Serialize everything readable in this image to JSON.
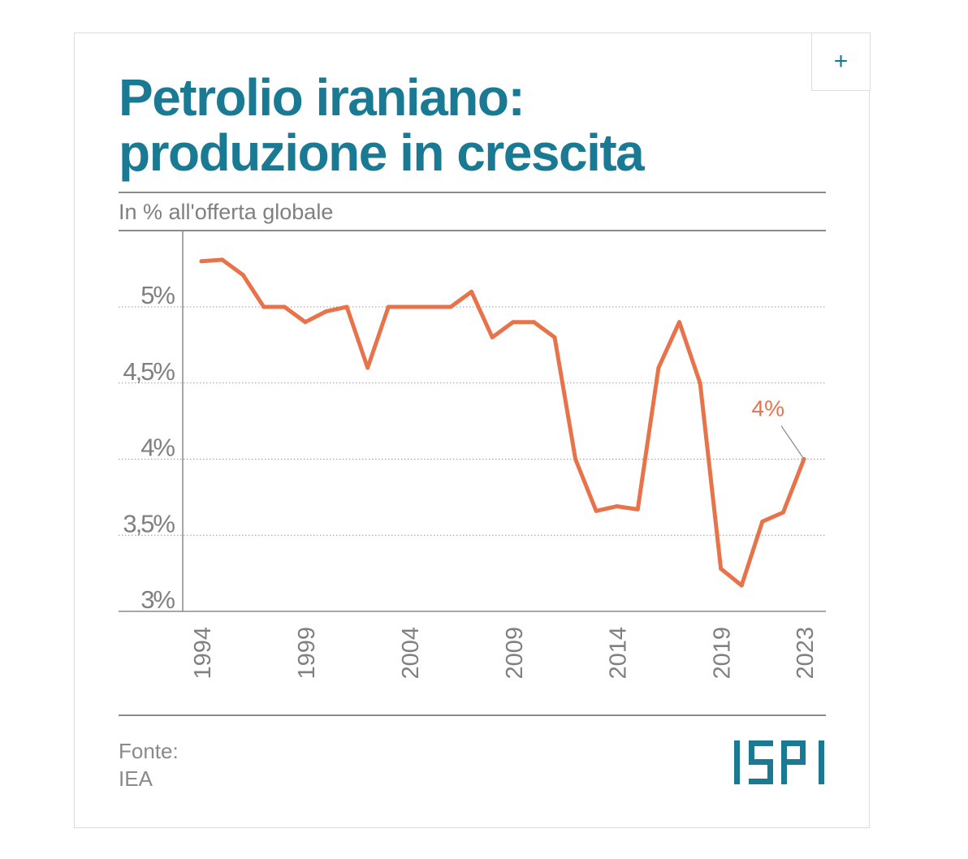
{
  "header": {
    "title_line1": "Petrolio iraniano:",
    "title_line2": "produzione in crescita",
    "subtitle": "In % all'offerta globale",
    "expand_label": "+"
  },
  "footer": {
    "source_label": "Fonte:",
    "source_value": "IEA",
    "logo_text": "ISPI"
  },
  "colors": {
    "title": "#1a7a94",
    "line": "#e8734a",
    "text": "#808080",
    "grid": "#9a9a9a"
  },
  "chart_data": {
    "type": "line",
    "title": "Petrolio iraniano: produzione in crescita",
    "subtitle": "In % all'offerta globale",
    "xlabel": "",
    "ylabel": "",
    "x_ticks": [
      "1994",
      "1999",
      "2004",
      "2009",
      "2014",
      "2019",
      "2023"
    ],
    "y_ticks": [
      "3%",
      "3,5%",
      "4%",
      "4,5%",
      "5%"
    ],
    "y_tick_values": [
      3,
      3.5,
      4,
      4.5,
      5
    ],
    "xlim": [
      1994,
      2023
    ],
    "ylim": [
      3,
      5.5
    ],
    "grid": true,
    "series": [
      {
        "color": "#e8734a",
        "x": [
          1994,
          1995,
          1996,
          1997,
          1998,
          1999,
          2000,
          2001,
          2002,
          2003,
          2004,
          2005,
          2006,
          2007,
          2008,
          2009,
          2010,
          2011,
          2012,
          2013,
          2014,
          2015,
          2016,
          2017,
          2018,
          2019,
          2020,
          2021,
          2022,
          2023
        ],
        "values": [
          5.3,
          5.31,
          5.21,
          5.0,
          5.0,
          4.9,
          4.97,
          5.0,
          4.6,
          5.0,
          5.0,
          5.0,
          5.0,
          5.1,
          4.8,
          4.9,
          4.9,
          4.8,
          4.0,
          3.66,
          3.69,
          3.67,
          4.6,
          4.9,
          4.5,
          3.28,
          3.17,
          3.59,
          3.65,
          4.0
        ]
      }
    ],
    "annotations": [
      {
        "label": "4%",
        "x": 2023,
        "y": 4.0
      }
    ]
  }
}
